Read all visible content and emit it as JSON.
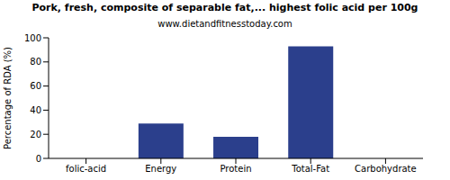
{
  "chart_data": {
    "type": "bar",
    "title": "Pork, fresh, composite of separable fat,... highest folic acid per 100g",
    "subtitle": "www.dietandfitnesstoday.com",
    "y_label": "Percentage of RDA (%)",
    "categories": [
      "folic-acid",
      "Energy",
      "Protein",
      "Total-Fat",
      "Carbohydrate"
    ],
    "values": [
      0,
      29,
      18,
      93,
      0
    ],
    "color": "#2b3f8c",
    "ylim": [
      0,
      100
    ],
    "yticks": [
      0,
      20,
      40,
      60,
      80,
      100
    ],
    "grid": false
  }
}
